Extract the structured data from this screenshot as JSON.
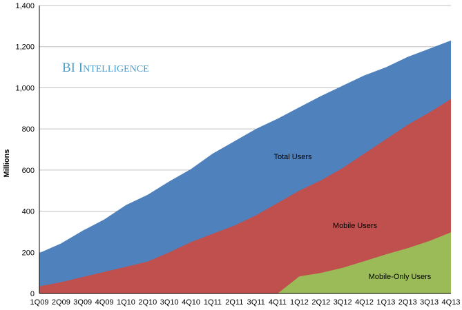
{
  "chart_data": {
    "type": "area",
    "watermark": "BI Intelligence",
    "xlabel": "",
    "ylabel": "Millions",
    "ylim": [
      0,
      1400
    ],
    "yticks": [
      "0",
      "200",
      "400",
      "600",
      "800",
      "1,000",
      "1,200",
      "1,400"
    ],
    "grid": true,
    "legend": "none",
    "categories": [
      "1Q09",
      "2Q09",
      "3Q09",
      "4Q09",
      "1Q10",
      "2Q10",
      "3Q10",
      "4Q10",
      "1Q11",
      "2Q11",
      "3Q11",
      "4Q11",
      "1Q12",
      "2Q12",
      "3Q12",
      "4Q12",
      "1Q13",
      "2Q13",
      "3Q13",
      "4Q13"
    ],
    "series": [
      {
        "name": "Total Users",
        "color": "#4f81bd",
        "values": [
          197,
          243,
          305,
          360,
          430,
          480,
          545,
          605,
          680,
          740,
          800,
          850,
          905,
          960,
          1010,
          1060,
          1100,
          1150,
          1190,
          1230
        ]
      },
      {
        "name": "Mobile Users",
        "color": "#c0504d",
        "values": [
          35,
          55,
          80,
          105,
          130,
          155,
          200,
          250,
          290,
          330,
          380,
          440,
          500,
          550,
          610,
          680,
          750,
          820,
          880,
          945
        ]
      },
      {
        "name": "Mobile-Only Users",
        "color": "#9bbb59",
        "values": [
          0,
          0,
          0,
          0,
          0,
          0,
          0,
          0,
          0,
          0,
          0,
          0,
          83,
          100,
          125,
          157,
          190,
          220,
          255,
          297
        ]
      }
    ]
  }
}
